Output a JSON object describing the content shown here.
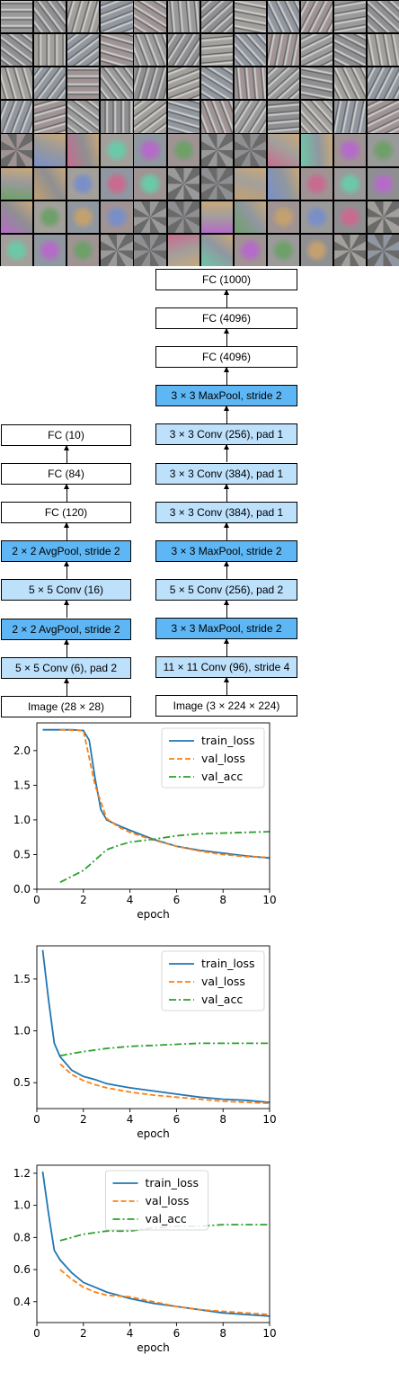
{
  "filters": {
    "caption": ""
  },
  "lenet": {
    "layers": [
      "FC (10)",
      "FC (84)",
      "FC (120)",
      "2 × 2 AvgPool, stride 2",
      "5 × 5 Conv (16)",
      "2 × 2 AvgPool, stride 2",
      "5 × 5 Conv (6), pad 2",
      "Image (28 × 28)"
    ],
    "kinds": [
      "fc",
      "fc",
      "fc",
      "pool",
      "conv",
      "pool",
      "conv",
      "fc"
    ]
  },
  "alexnet": {
    "layers": [
      "FC (1000)",
      "FC (4096)",
      "FC (4096)",
      "3 × 3 MaxPool, stride 2",
      "3 × 3 Conv (256), pad 1",
      "3 × 3 Conv (384), pad 1",
      "3 × 3 Conv (384), pad 1",
      "3 × 3 MaxPool, stride 2",
      "5 × 5 Conv (256), pad 2",
      "3 × 3 MaxPool, stride 2",
      "11 × 11 Conv (96), stride 4",
      "Image (3 × 224 × 224)"
    ],
    "kinds": [
      "fc",
      "fc",
      "fc",
      "pool",
      "conv",
      "conv",
      "conv",
      "pool",
      "conv",
      "pool",
      "conv",
      "fc"
    ]
  },
  "colors": {
    "train_loss": "#1f77b4",
    "val_loss": "#ff7f0e",
    "val_acc": "#2ca02c"
  },
  "chart_data": [
    {
      "type": "line",
      "xlabel": "epoch",
      "xlim": [
        0,
        10
      ],
      "ylim": [
        0,
        2.4
      ],
      "yticks": [
        0.0,
        0.5,
        1.0,
        1.5,
        2.0
      ],
      "yticklabels": [
        "0.0",
        "0.5",
        "1.0",
        "1.5",
        "2.0"
      ],
      "xticks": [
        0,
        2,
        4,
        6,
        8,
        10
      ],
      "legend_loc": "upper right",
      "series": [
        {
          "name": "train_loss",
          "style": "solid",
          "x": [
            0.25,
            0.5,
            1.0,
            1.5,
            2.0,
            2.25,
            2.5,
            2.75,
            3.0,
            3.5,
            4.0,
            5.0,
            6.0,
            7.0,
            8.0,
            9.0,
            10.0
          ],
          "y": [
            2.3,
            2.3,
            2.3,
            2.3,
            2.29,
            2.15,
            1.6,
            1.15,
            1.0,
            0.92,
            0.85,
            0.72,
            0.62,
            0.56,
            0.52,
            0.48,
            0.45
          ]
        },
        {
          "name": "val_loss",
          "style": "dashed",
          "x": [
            1,
            2,
            2.5,
            3,
            3.5,
            4,
            5,
            6,
            7,
            8,
            9,
            10
          ],
          "y": [
            2.3,
            2.29,
            1.5,
            1.02,
            0.9,
            0.82,
            0.71,
            0.62,
            0.55,
            0.5,
            0.47,
            0.46
          ]
        },
        {
          "name": "val_acc",
          "style": "dashdot",
          "x": [
            1,
            2,
            2.5,
            3,
            3.5,
            4,
            5,
            6,
            7,
            8,
            9,
            10
          ],
          "y": [
            0.1,
            0.27,
            0.42,
            0.57,
            0.63,
            0.68,
            0.72,
            0.77,
            0.8,
            0.81,
            0.82,
            0.83
          ]
        }
      ]
    },
    {
      "type": "line",
      "xlabel": "epoch",
      "xlim": [
        0,
        10
      ],
      "ylim": [
        0.25,
        1.82
      ],
      "yticks": [
        0.5,
        1.0,
        1.5
      ],
      "yticklabels": [
        "0.5",
        "1.0",
        "1.5"
      ],
      "xticks": [
        0,
        2,
        4,
        6,
        8,
        10
      ],
      "legend_loc": "upper right",
      "series": [
        {
          "name": "train_loss",
          "style": "solid",
          "x": [
            0.25,
            0.5,
            0.75,
            1,
            1.5,
            2,
            2.5,
            3,
            3.5,
            4,
            5,
            6,
            7,
            8,
            9,
            10
          ],
          "y": [
            1.78,
            1.3,
            0.88,
            0.75,
            0.62,
            0.56,
            0.53,
            0.49,
            0.47,
            0.45,
            0.42,
            0.39,
            0.36,
            0.34,
            0.33,
            0.31
          ]
        },
        {
          "name": "val_loss",
          "style": "dashed",
          "x": [
            1,
            1.5,
            2,
            2.5,
            3,
            4,
            5,
            6,
            7,
            8,
            9,
            10
          ],
          "y": [
            0.68,
            0.58,
            0.52,
            0.48,
            0.45,
            0.41,
            0.38,
            0.36,
            0.34,
            0.32,
            0.31,
            0.3
          ]
        },
        {
          "name": "val_acc",
          "style": "dashdot",
          "x": [
            1,
            2,
            3,
            4,
            5,
            6,
            7,
            8,
            9,
            10
          ],
          "y": [
            0.76,
            0.8,
            0.83,
            0.85,
            0.86,
            0.87,
            0.88,
            0.88,
            0.88,
            0.88
          ]
        }
      ]
    },
    {
      "type": "line",
      "xlabel": "epoch",
      "xlim": [
        0,
        10
      ],
      "ylim": [
        0.27,
        1.25
      ],
      "yticks": [
        0.4,
        0.6,
        0.8,
        1.0,
        1.2
      ],
      "yticklabels": [
        "0.4",
        "0.6",
        "0.8",
        "1.0",
        "1.2"
      ],
      "xticks": [
        0,
        2,
        4,
        6,
        8,
        10
      ],
      "legend_loc": "upper center",
      "series": [
        {
          "name": "train_loss",
          "style": "solid",
          "x": [
            0.25,
            0.5,
            0.75,
            1,
            1.5,
            2,
            2.5,
            3,
            3.5,
            4,
            5,
            6,
            7,
            8,
            9,
            10
          ],
          "y": [
            1.21,
            0.95,
            0.72,
            0.66,
            0.58,
            0.52,
            0.49,
            0.46,
            0.44,
            0.42,
            0.39,
            0.37,
            0.35,
            0.33,
            0.32,
            0.31
          ]
        },
        {
          "name": "val_loss",
          "style": "dashed",
          "x": [
            1,
            1.5,
            2,
            2.5,
            3,
            4,
            5,
            6,
            7,
            8,
            9,
            10
          ],
          "y": [
            0.6,
            0.54,
            0.49,
            0.46,
            0.44,
            0.43,
            0.4,
            0.37,
            0.35,
            0.34,
            0.33,
            0.32
          ]
        },
        {
          "name": "val_acc",
          "style": "dashdot",
          "x": [
            1,
            2,
            3,
            4,
            5,
            6,
            7,
            8,
            9,
            10
          ],
          "y": [
            0.78,
            0.82,
            0.84,
            0.84,
            0.86,
            0.87,
            0.87,
            0.88,
            0.88,
            0.88
          ]
        }
      ]
    }
  ]
}
